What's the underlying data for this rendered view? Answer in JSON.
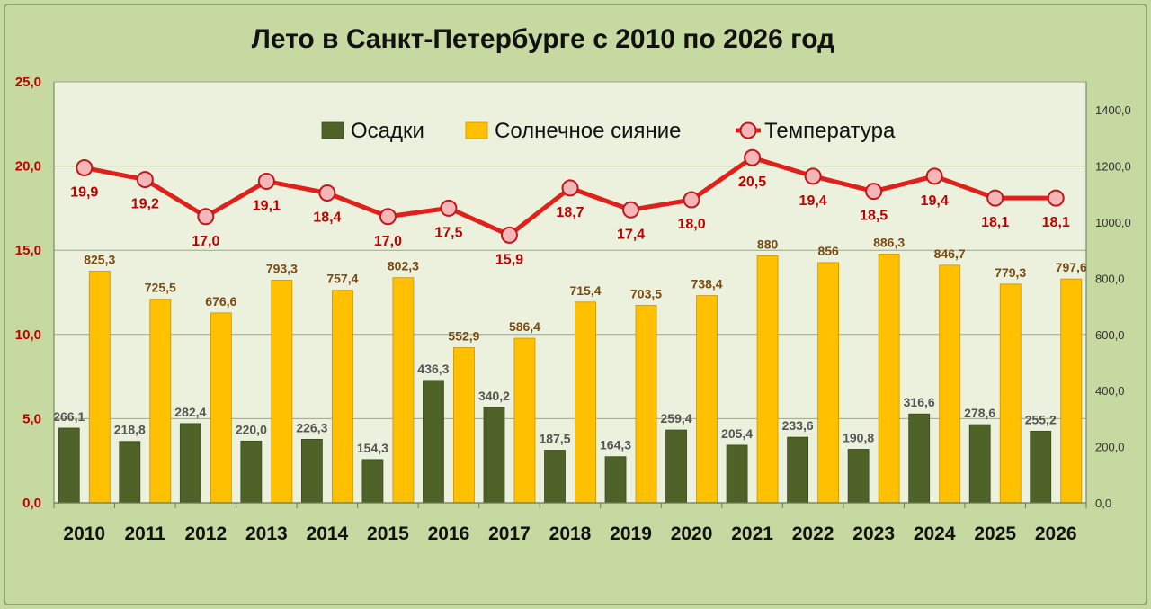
{
  "chart_data": {
    "type": "bar",
    "title": "Лето в Санкт-Петербурге с 2010 по 2026 год",
    "categories": [
      "2010",
      "2011",
      "2012",
      "2013",
      "2014",
      "2015",
      "2016",
      "2017",
      "2018",
      "2019",
      "2020",
      "2021",
      "2022",
      "2023",
      "2024",
      "2025",
      "2026"
    ],
    "series": [
      {
        "name": "Осадки",
        "kind": "bar",
        "axis": "right",
        "color": "#4f6228",
        "values": [
          266.1,
          218.8,
          282.4,
          220.0,
          226.3,
          154.3,
          436.3,
          340.2,
          187.5,
          164.3,
          259.4,
          205.4,
          233.6,
          190.8,
          316.6,
          278.6,
          255.2
        ],
        "labels": [
          "266,1",
          "218,8",
          "282,4",
          "220,0",
          "226,3",
          "154,3",
          "436,3",
          "340,2",
          "187,5",
          "164,3",
          "259,4",
          "205,4",
          "233,6",
          "190,8",
          "316,6",
          "278,6",
          "255,2"
        ]
      },
      {
        "name": "Солнечное сияние",
        "kind": "bar",
        "axis": "right",
        "color": "#ffc000",
        "values": [
          825.3,
          725.5,
          676.6,
          793.3,
          757.4,
          802.3,
          552.9,
          586.4,
          715.4,
          703.5,
          738.4,
          880,
          856,
          886.3,
          846.7,
          779.3,
          797.6
        ],
        "labels": [
          "825,3",
          "725,5",
          "676,6",
          "793,3",
          "757,4",
          "802,3",
          "552,9",
          "586,4",
          "715,4",
          "703,5",
          "738,4",
          "880",
          "856",
          "886,3",
          "846,7",
          "779,3",
          "797,6"
        ]
      },
      {
        "name": "Температура",
        "kind": "line",
        "axis": "left",
        "color": "#e0201a",
        "values": [
          19.9,
          19.2,
          17.0,
          19.1,
          18.4,
          17.0,
          17.5,
          15.9,
          18.7,
          17.4,
          18.0,
          20.5,
          19.4,
          18.5,
          19.4,
          18.1,
          18.1
        ],
        "labels": [
          "19,9",
          "19,2",
          "17,0",
          "19,1",
          "18,4",
          "17,0",
          "17,5",
          "15,9",
          "18,7",
          "17,4",
          "18,0",
          "20,5",
          "19,4",
          "18,5",
          "19,4",
          "18,1",
          "18,1"
        ]
      }
    ],
    "y_left": {
      "range": [
        0,
        25
      ],
      "ticks": [
        0,
        5,
        10,
        15,
        20,
        25
      ],
      "tick_labels": [
        "0,0",
        "5,0",
        "10,0",
        "15,0",
        "20,0",
        "25,0"
      ]
    },
    "y_right": {
      "range": [
        0,
        1500
      ],
      "ticks": [
        0,
        200,
        400,
        600,
        800,
        1000,
        1200,
        1400
      ],
      "tick_labels": [
        "0,0",
        "200,0",
        "400,0",
        "600,0",
        "800,0",
        "1000,0",
        "1200,0",
        "1400,0"
      ]
    },
    "grid": true,
    "legend_position": "top-center"
  }
}
